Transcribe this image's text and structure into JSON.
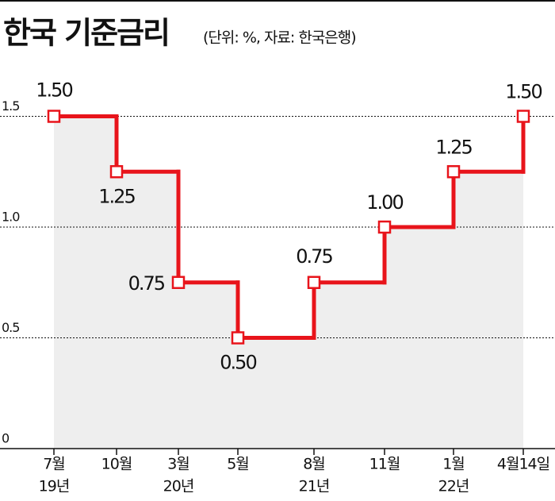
{
  "chart_data": {
    "type": "step",
    "title": "한국 기준금리",
    "subtitle": "(단위: %, 자료: 한국은행)",
    "categories": [
      "7월",
      "10월",
      "3월",
      "5월",
      "8월",
      "11월",
      "1월",
      "4월14일"
    ],
    "year_labels": [
      "19년",
      null,
      "20년",
      null,
      "21년",
      null,
      "22년",
      null
    ],
    "values": [
      1.5,
      1.25,
      0.75,
      0.5,
      0.75,
      1.0,
      1.25,
      1.5
    ],
    "value_labels": [
      "1.50",
      "1.25",
      "0.75",
      "0.50",
      "0.75",
      "1.00",
      "1.25",
      "1.50"
    ],
    "color": "#e8141b",
    "area_color": "#eeeeee",
    "ylim": [
      0,
      2
    ],
    "yticks": [
      0,
      0.5,
      {
        "value": 1,
        "label": "1.0"
      },
      1.5
    ],
    "grid": true
  }
}
